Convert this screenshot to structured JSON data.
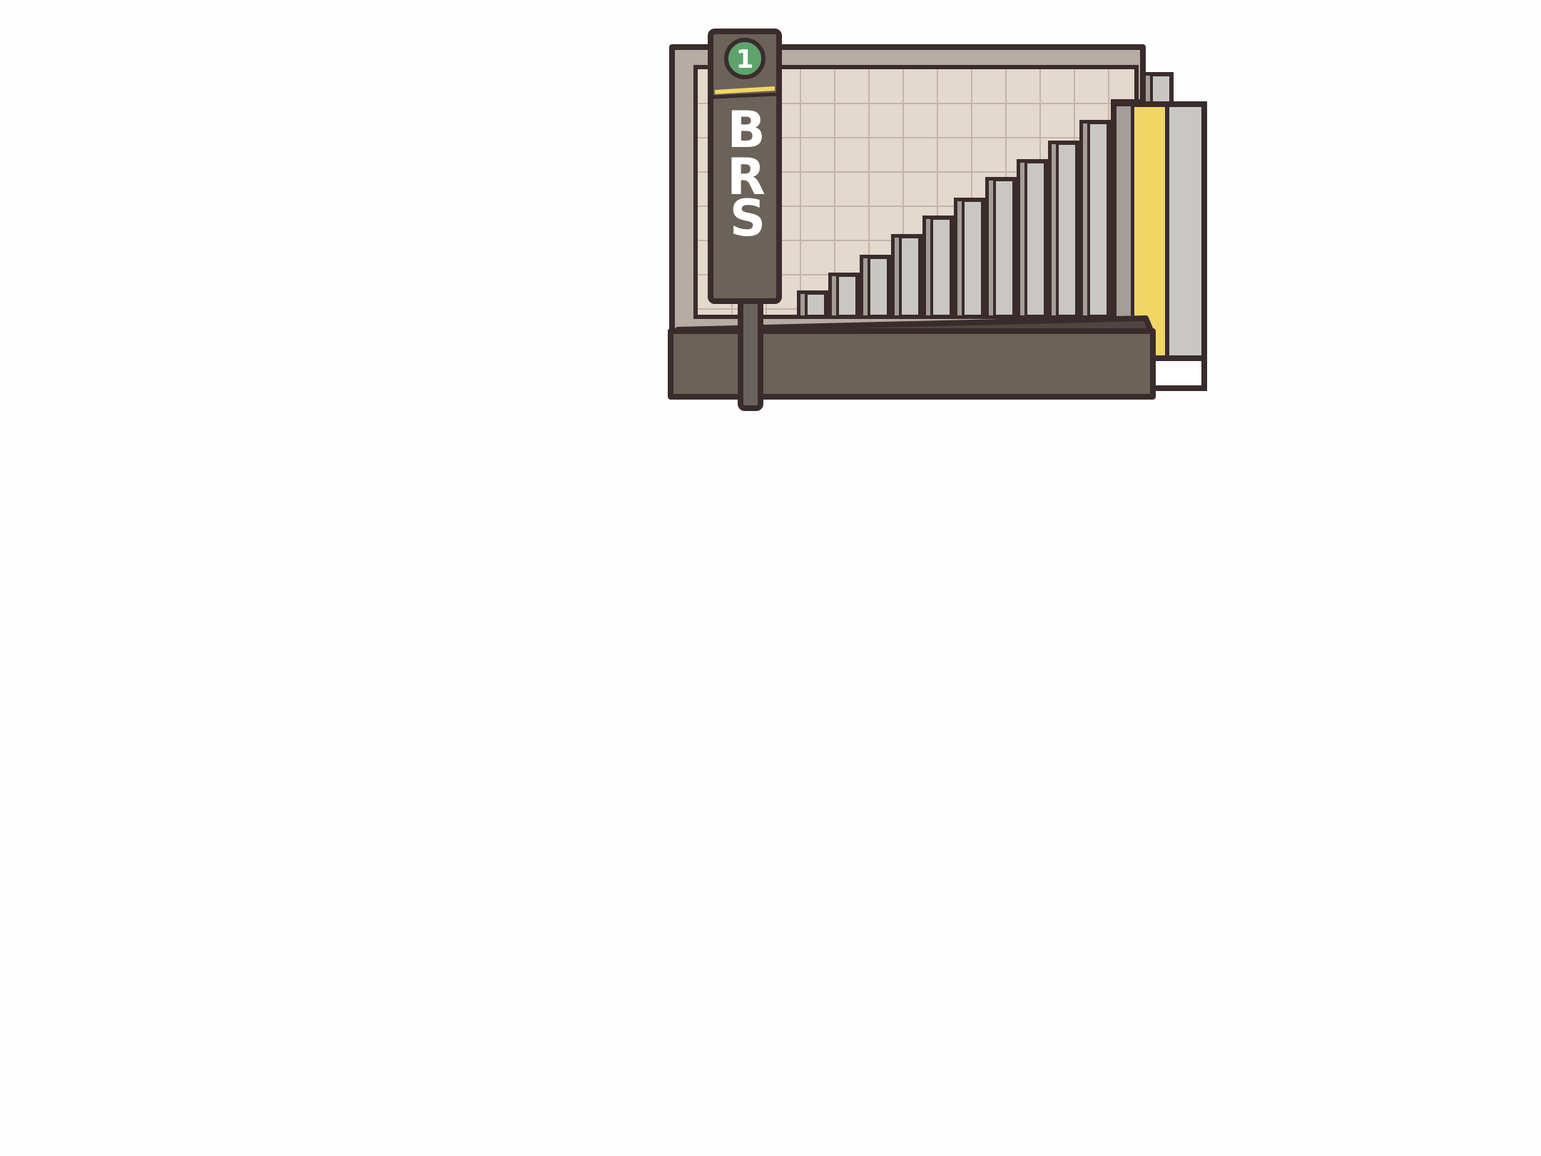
{
  "sign": {
    "number": "1",
    "letters": [
      "B",
      "R",
      "S"
    ]
  },
  "colors": {
    "outline": "#3a2c2c",
    "panel_outer": "#b7aca4",
    "panel_inner": "#e3d9cc",
    "grid_line": "#c4b4aa",
    "bar_fill": "#c9c7c4",
    "bar_shadow": "#a59e98",
    "ledge": "#6b6258",
    "pole": "#6a635d",
    "badge_green": "#5ea36c",
    "stripe_yellow": "#f1d666"
  },
  "scene": {
    "bar_count": 12,
    "bar_levels": [
      0.08,
      0.14,
      0.2,
      0.27,
      0.33,
      0.39,
      0.46,
      0.52,
      0.58,
      0.65,
      0.72,
      0.81
    ]
  }
}
